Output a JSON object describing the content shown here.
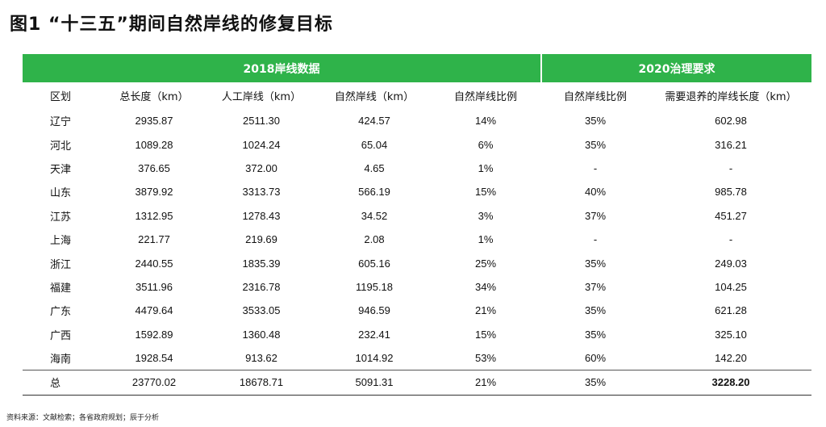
{
  "title": "图1 “十三五”期间自然岸线的修复目标",
  "group_headers": [
    "2018岸线数据",
    "2020治理要求"
  ],
  "columns": [
    "区划",
    "总长度（km）",
    "人工岸线（km）",
    "自然岸线（km）",
    "自然岸线比例",
    "自然岸线比例",
    "需要退养的岸线长度（km）"
  ],
  "rows": [
    [
      "辽宁",
      "2935.87",
      "2511.30",
      "424.57",
      "14%",
      "35%",
      "602.98"
    ],
    [
      "河北",
      "1089.28",
      "1024.24",
      "65.04",
      "6%",
      "35%",
      "316.21"
    ],
    [
      "天津",
      "376.65",
      "372.00",
      "4.65",
      "1%",
      "-",
      "-"
    ],
    [
      "山东",
      "3879.92",
      "3313.73",
      "566.19",
      "15%",
      "40%",
      "985.78"
    ],
    [
      "江苏",
      "1312.95",
      "1278.43",
      "34.52",
      "3%",
      "37%",
      "451.27"
    ],
    [
      "上海",
      "221.77",
      "219.69",
      "2.08",
      "1%",
      "-",
      "-"
    ],
    [
      "浙江",
      "2440.55",
      "1835.39",
      "605.16",
      "25%",
      "35%",
      "249.03"
    ],
    [
      "福建",
      "3511.96",
      "2316.78",
      "1195.18",
      "34%",
      "37%",
      "104.25"
    ],
    [
      "广东",
      "4479.64",
      "3533.05",
      "946.59",
      "21%",
      "35%",
      "621.28"
    ],
    [
      "广西",
      "1592.89",
      "1360.48",
      "232.41",
      "15%",
      "35%",
      "325.10"
    ],
    [
      "海南",
      "1928.54",
      "913.62",
      "1014.92",
      "53%",
      "60%",
      "142.20"
    ]
  ],
  "total": [
    "总",
    "23770.02",
    "18678.71",
    "5091.31",
    "21%",
    "35%",
    "3228.20"
  ],
  "source": "资料来源：文献检索；各省政府规划；辰于分析",
  "colors": {
    "header_green": "#2fb34a"
  }
}
